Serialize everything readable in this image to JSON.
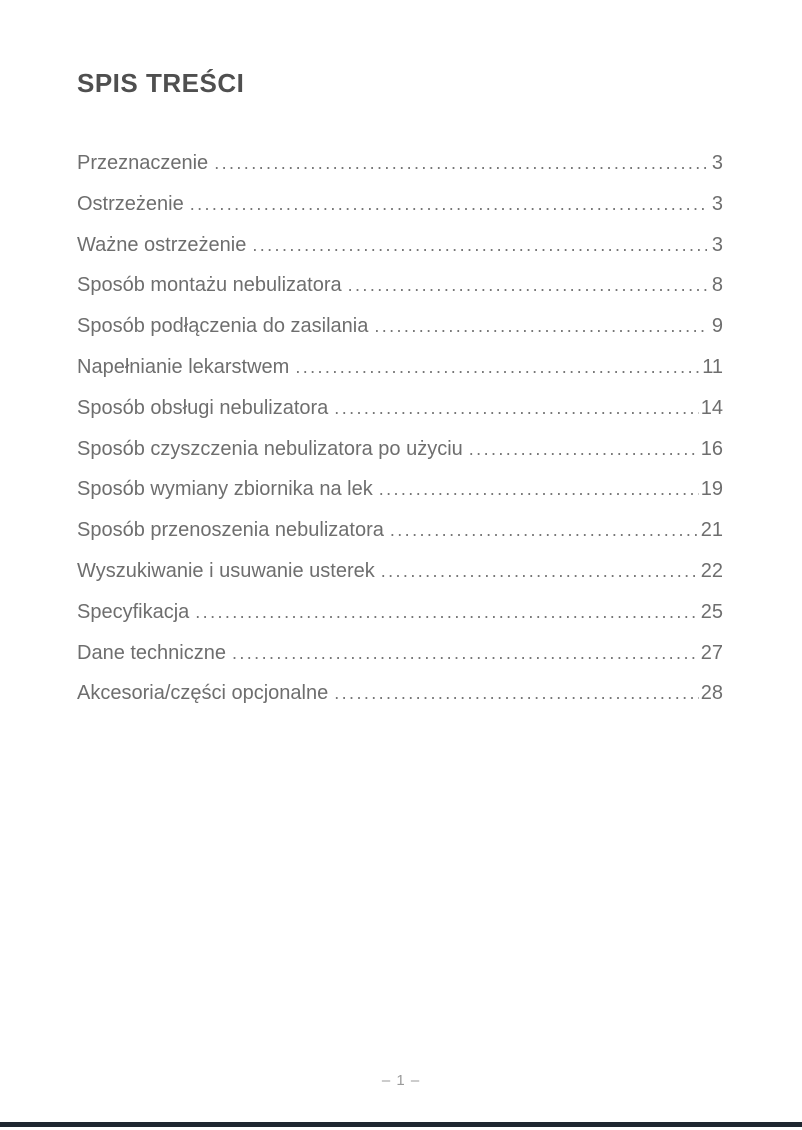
{
  "title": "SPIS TREŚCI",
  "toc": {
    "items": [
      {
        "label": "Przeznaczenie",
        "page": "3"
      },
      {
        "label": "Ostrzeżenie",
        "page": "3"
      },
      {
        "label": "Ważne ostrzeżenie",
        "page": "3"
      },
      {
        "label": "Sposób montażu nebulizatora",
        "page": "8"
      },
      {
        "label": "Sposób podłączenia do zasilania",
        "page": "9"
      },
      {
        "label": "Napełnianie lekarstwem",
        "page": "11"
      },
      {
        "label": "Sposób obsługi nebulizatora",
        "page": "14"
      },
      {
        "label": "Sposób czyszczenia nebulizatora po użyciu",
        "page": "16"
      },
      {
        "label": "Sposób wymiany zbiornika na lek",
        "page": "19"
      },
      {
        "label": "Sposób przenoszenia nebulizatora",
        "page": "21"
      },
      {
        "label": "Wyszukiwanie i usuwanie usterek",
        "page": "22"
      },
      {
        "label": "Specyfikacja",
        "page": "25"
      },
      {
        "label": "Dane techniczne",
        "page": "27"
      },
      {
        "label": "Akcesoria/części opcjonalne",
        "page": "28"
      }
    ]
  },
  "footer": {
    "page_label": "– 1 –"
  },
  "colors": {
    "body_text": "#6e6e6e",
    "title_text": "#4f4f4f",
    "footer_text": "#9a9a9a",
    "bottom_bar": "#1f2730"
  }
}
